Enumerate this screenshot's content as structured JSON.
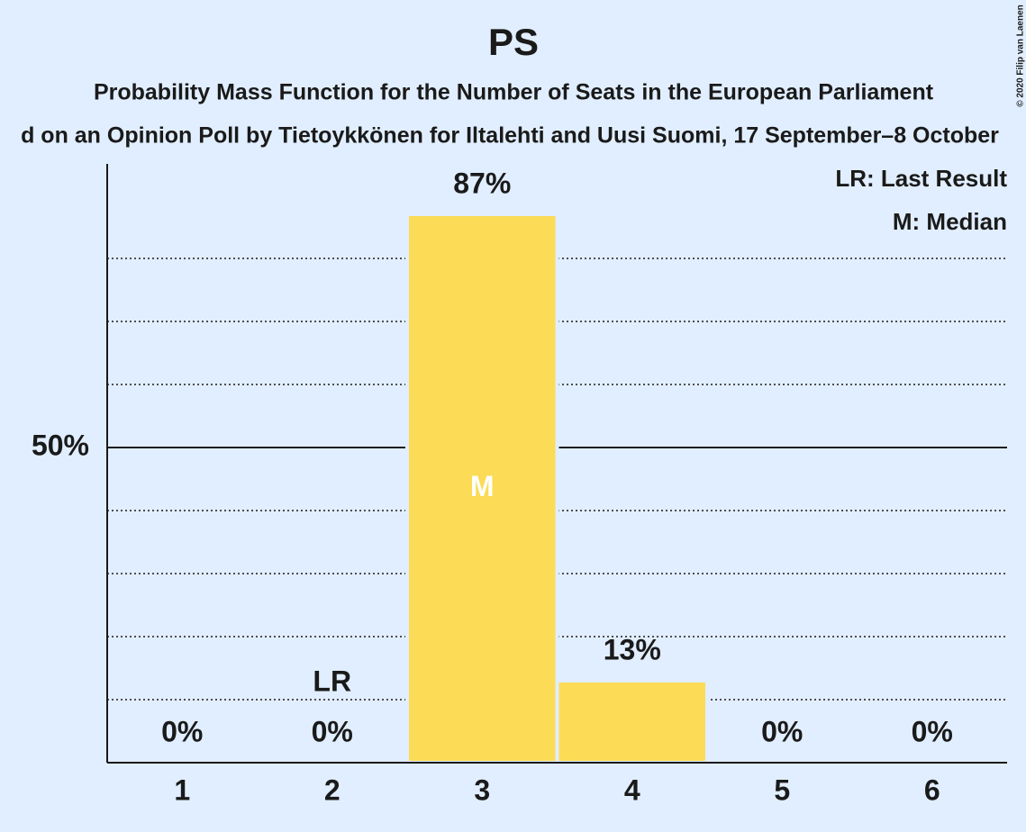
{
  "chart_data": {
    "type": "bar",
    "title": "PS",
    "subtitle": "Probability Mass Function for the Number of Seats in the European Parliament",
    "subtitle2": "d on an Opinion Poll by Tietoykkönen for Iltalehti and Uusi Suomi, 17 September–8 October",
    "copyright": "© 2020 Filip van Laenen",
    "categories": [
      "1",
      "2",
      "3",
      "4",
      "5",
      "6"
    ],
    "values": [
      0,
      0,
      87,
      13,
      0,
      0
    ],
    "value_labels": [
      "0%",
      "0%",
      "87%",
      "13%",
      "0%",
      "0%"
    ],
    "color": "#fcdb56",
    "ylim": [
      0,
      95
    ],
    "yticks": [
      {
        "value": 50,
        "label": "50%"
      }
    ],
    "yminor": [
      10,
      20,
      30,
      40,
      60,
      70,
      80
    ],
    "grid": true,
    "annotations": [
      {
        "text": "LR",
        "category": "2"
      },
      {
        "text": "M",
        "category": "3"
      }
    ],
    "legend": [
      "LR: Last Result",
      "M: Median"
    ]
  }
}
